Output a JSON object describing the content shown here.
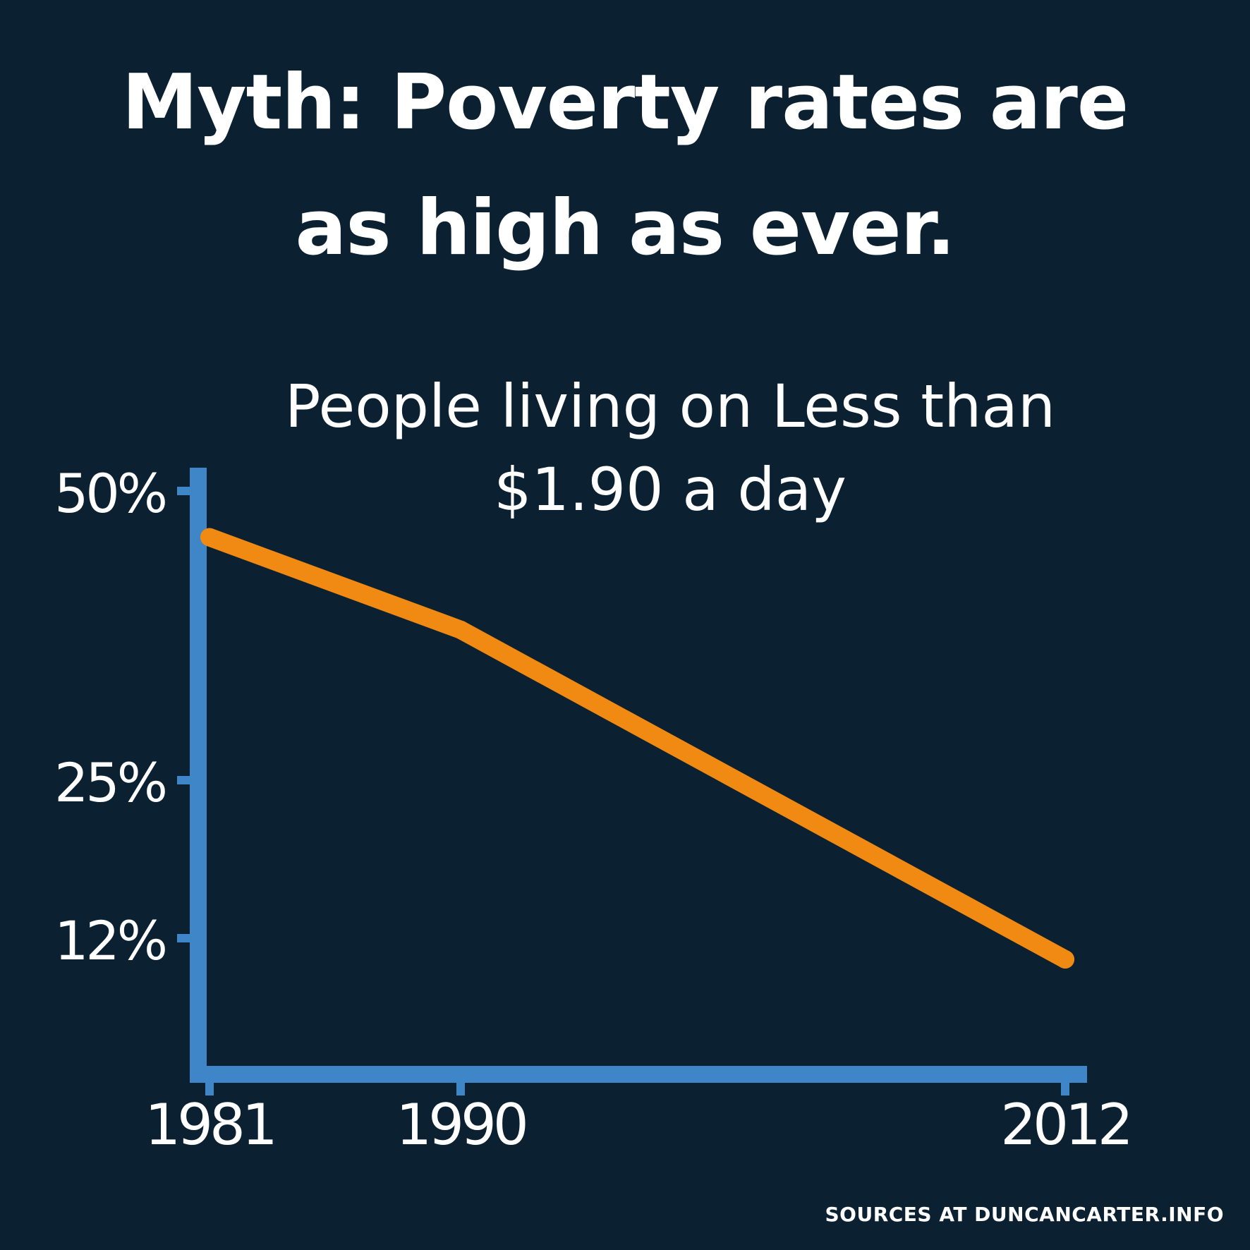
{
  "title": {
    "line1": "Myth: Poverty rates are",
    "line2": "as high as ever."
  },
  "footer": {
    "source": "SOURCES AT DUNCANCARTER.INFO"
  },
  "colors": {
    "background": "#0b2031",
    "axis": "#3f86c8",
    "line": "#f08a12",
    "text": "#ffffff"
  },
  "chart_data": {
    "type": "line",
    "title_lines": [
      "People living on Less than",
      "$1.90 a day"
    ],
    "x": [
      1981,
      1990,
      2012
    ],
    "x_tick_labels": [
      "1981",
      "1990",
      "2012"
    ],
    "series": [
      {
        "name": "People living on less than $1.90 a day",
        "values": [
          46,
          38,
          10
        ]
      }
    ],
    "y_ticks": [
      50,
      25,
      12
    ],
    "y_tick_labels": [
      "50%",
      "25%",
      "12%"
    ],
    "xlabel": "",
    "ylabel": "",
    "legend": "none",
    "grid": false
  }
}
